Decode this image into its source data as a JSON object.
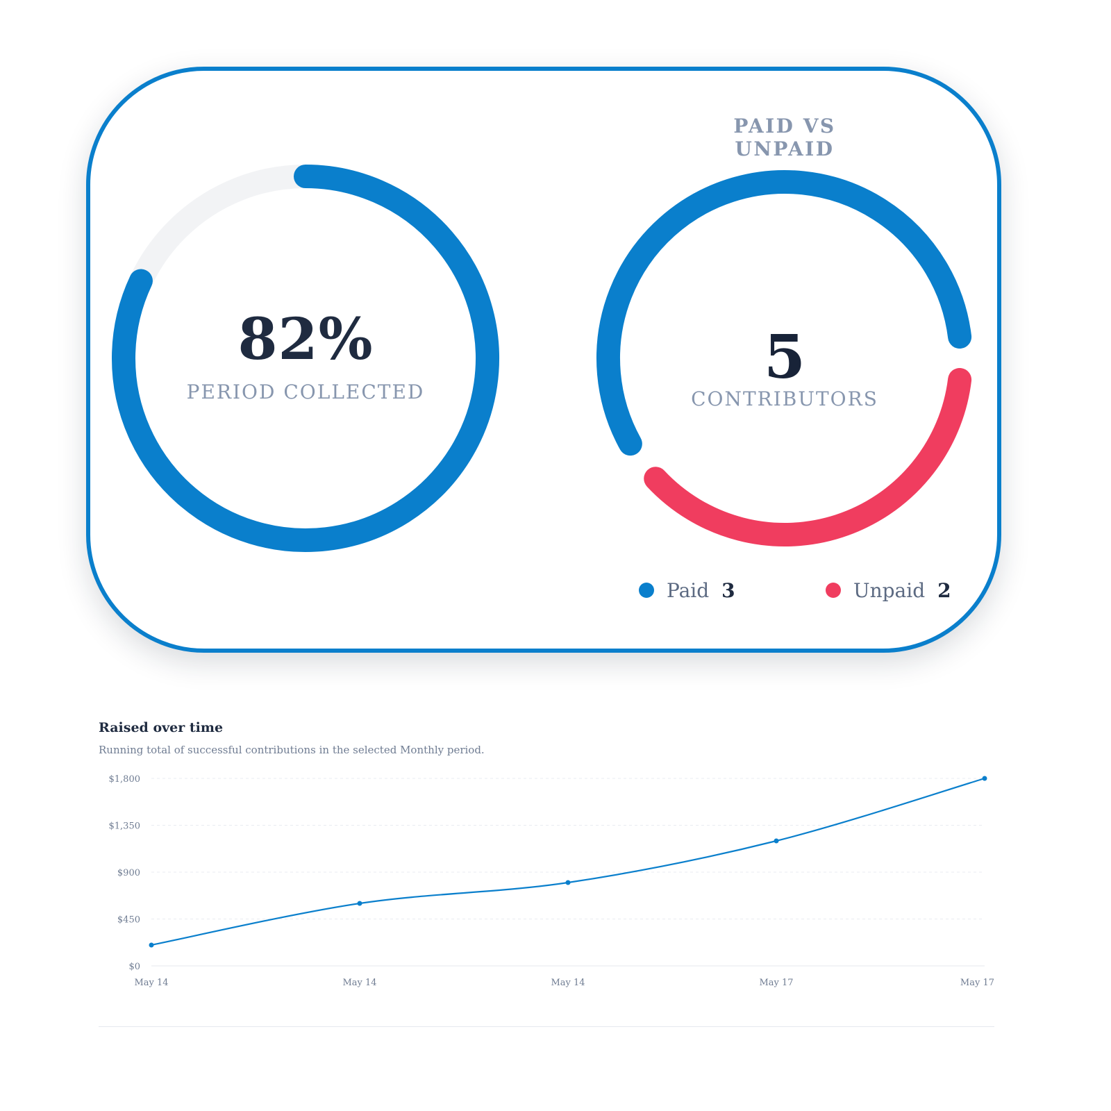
{
  "collected": {
    "value": "82%",
    "caption": "PERIOD COLLECTED",
    "percent": 82
  },
  "contributors": {
    "heading": "PAID VS UNPAID",
    "value": "5",
    "caption": "CONTRIBUTORS",
    "paid_label": "Paid",
    "paid_count": "3",
    "unpaid_label": "Unpaid",
    "unpaid_count": "2"
  },
  "colors": {
    "accent": "#0a7fcc",
    "unpaid": "#f03d5f",
    "track": "#f2f3f5",
    "text_dark": "#1f2b40",
    "text_muted": "#8796ae"
  },
  "chart_data": {
    "type": "line",
    "title": "Raised over time",
    "subtitle": "Running total of successful contributions in the selected Monthly period.",
    "ylim": [
      0,
      1800
    ],
    "yticks": [
      "$0",
      "$450",
      "$900",
      "$1,350",
      "$1,800"
    ],
    "ytick_values": [
      0,
      450,
      900,
      1350,
      1800
    ],
    "x": [
      "May 14",
      "May 14",
      "May 14",
      "May 17",
      "May 17"
    ],
    "values": [
      200,
      600,
      800,
      1200,
      1800
    ],
    "grid": "horizontal-dashed"
  }
}
